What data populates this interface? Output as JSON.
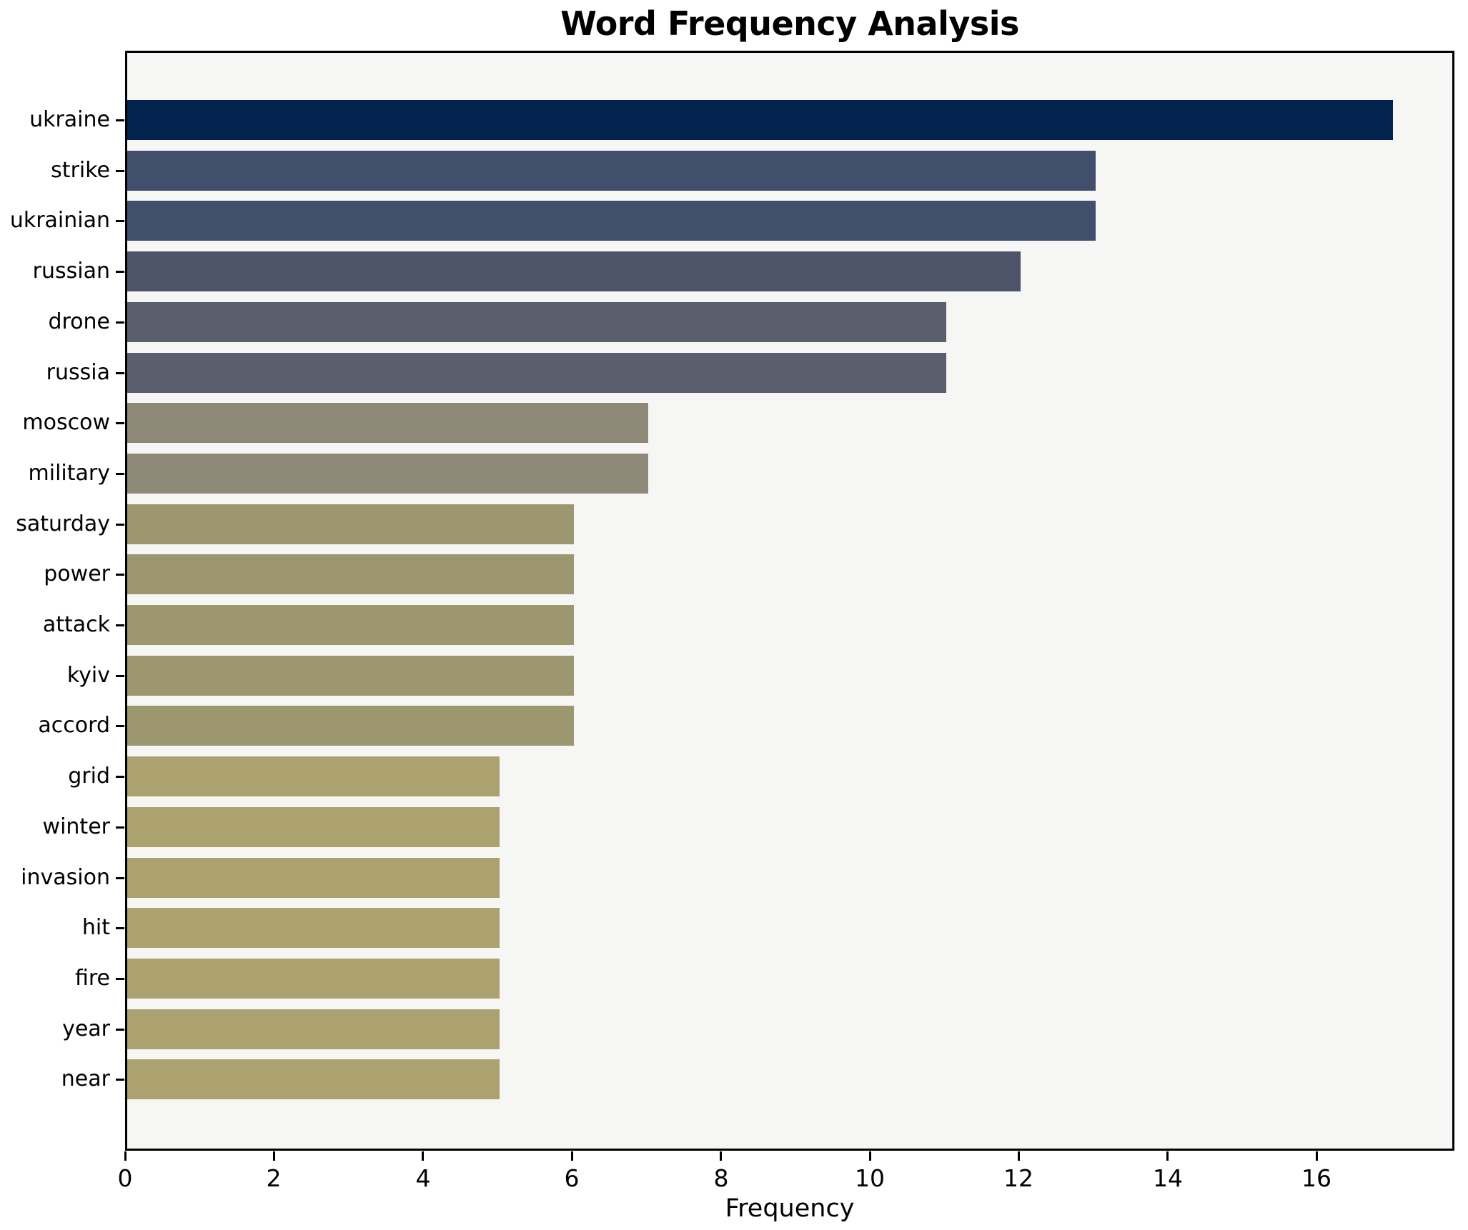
{
  "chart_data": {
    "type": "bar",
    "orientation": "horizontal",
    "title": "Word Frequency Analysis",
    "xlabel": "Frequency",
    "ylabel": "",
    "categories": [
      "ukraine",
      "strike",
      "ukrainian",
      "russian",
      "drone",
      "russia",
      "moscow",
      "military",
      "saturday",
      "power",
      "attack",
      "kyiv",
      "accord",
      "grid",
      "winter",
      "invasion",
      "hit",
      "fire",
      "year",
      "near"
    ],
    "values": [
      17,
      13,
      13,
      12,
      11,
      11,
      7,
      7,
      6,
      6,
      6,
      6,
      6,
      5,
      5,
      5,
      5,
      5,
      5,
      5
    ],
    "bar_colors": [
      "#02234e",
      "#414f6c",
      "#414f6c",
      "#4d5469",
      "#595f6c",
      "#595f6c",
      "#8f8a77",
      "#8f8a77",
      "#9d9770",
      "#9d9770",
      "#9d9770",
      "#9d9770",
      "#9d9770",
      "#aca26f",
      "#aca26f",
      "#aca26f",
      "#aca26f",
      "#aca26f",
      "#aca26f",
      "#aca26f"
    ],
    "xlim": [
      0,
      17.85
    ],
    "xticks": [
      0,
      2,
      4,
      6,
      8,
      10,
      12,
      14,
      16
    ],
    "grid": false,
    "legend": null,
    "colors": {
      "plot_background": "#f6f6f5",
      "figure_background": "#ffffff",
      "spine": "#000000",
      "text": "#000000"
    }
  }
}
